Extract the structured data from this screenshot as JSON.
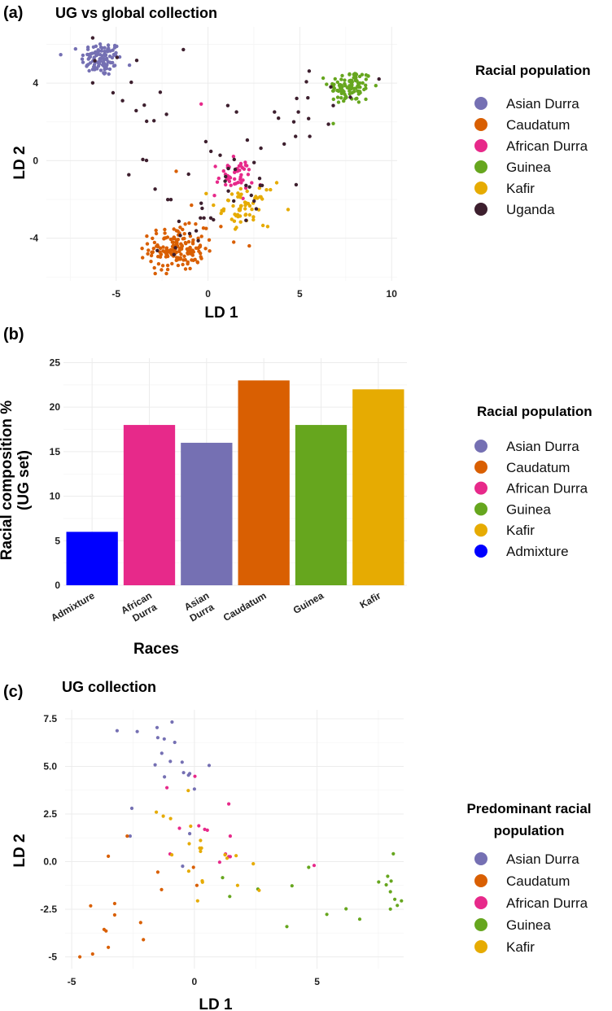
{
  "colors": {
    "Asian Durra": "#7570B3",
    "Caudatum": "#D95F02",
    "African Durra": "#E7298A",
    "Guinea": "#66A61E",
    "Kafir": "#E6AB02",
    "Uganda": "#3D1F2E",
    "Admixture": "#0000FF"
  },
  "chart_data": [
    {
      "panel": "(a)",
      "type": "scatter",
      "title": "UG vs global collection",
      "xlabel": "LD 1",
      "ylabel": "LD 2",
      "xlim": [
        -8.8,
        10.3
      ],
      "ylim": [
        -6.2,
        6.9
      ],
      "xticks": [
        -5,
        0,
        5,
        10
      ],
      "yticks": [
        -4,
        0,
        4
      ],
      "xtick_labels": [
        "-5",
        "0",
        "5",
        "10"
      ],
      "ytick_labels": [
        "-4",
        "0",
        "4"
      ],
      "grid": true,
      "legend": {
        "title": "Racial population",
        "placement": "right",
        "entries": [
          "Asian Durra",
          "Caudatum",
          "African Durra",
          "Guinea",
          "Kafir",
          "Uganda"
        ]
      },
      "clusters": [
        {
          "name": "Asian Durra",
          "center": [
            -5.8,
            5.25
          ],
          "sd": [
            0.55,
            0.45
          ],
          "n": 110
        },
        {
          "name": "Guinea",
          "center": [
            7.75,
            3.8
          ],
          "sd": [
            0.6,
            0.45
          ],
          "n": 100
        },
        {
          "name": "Caudatum",
          "center": [
            -1.7,
            -4.55
          ],
          "sd": [
            0.75,
            0.55
          ],
          "n": 160
        },
        {
          "name": "African Durra",
          "center": [
            1.45,
            -0.8
          ],
          "sd": [
            0.5,
            0.4
          ],
          "n": 45
        },
        {
          "name": "Kafir",
          "center": [
            2.0,
            -2.4
          ],
          "sd": [
            0.55,
            0.45
          ],
          "n": 55
        }
      ],
      "series": [
        {
          "name": "Uganda",
          "points": [
            [
              -6.28,
              6.33
            ],
            [
              -4.95,
              5.32
            ],
            [
              -6.16,
              5.15
            ],
            [
              -3.88,
              5.17
            ],
            [
              -6.28,
              4.01
            ],
            [
              -4.18,
              4.04
            ],
            [
              -1.34,
              5.73
            ],
            [
              -5.17,
              3.5
            ],
            [
              -4.65,
              3.09
            ],
            [
              -2.6,
              3.53
            ],
            [
              -3.47,
              2.86
            ],
            [
              -3.91,
              2.58
            ],
            [
              -3.34,
              2.03
            ],
            [
              -2.94,
              2.06
            ],
            [
              -2.26,
              2.39
            ],
            [
              1.08,
              2.84
            ],
            [
              1.55,
              2.51
            ],
            [
              -0.12,
              0.98
            ],
            [
              0.16,
              0.48
            ],
            [
              0.66,
              0.28
            ],
            [
              2.14,
              1.06
            ],
            [
              2.88,
              0.64
            ],
            [
              -3.55,
              0.06
            ],
            [
              -3.35,
              0.01
            ],
            [
              -4.31,
              -0.73
            ],
            [
              -1.06,
              -0.7
            ],
            [
              -2.88,
              -1.47
            ],
            [
              -2.19,
              -2.01
            ],
            [
              -2.02,
              -2.01
            ],
            [
              -0.37,
              -2.2
            ],
            [
              -0.32,
              -2.46
            ],
            [
              -0.41,
              -2.96
            ],
            [
              -0.22,
              -2.96
            ],
            [
              0.15,
              -2.96
            ],
            [
              0.3,
              -3.05
            ],
            [
              -1.58,
              -3.13
            ],
            [
              -1.51,
              -3.86
            ],
            [
              -0.64,
              -3.62
            ],
            [
              -1.0,
              -3.76
            ],
            [
              -0.53,
              -4.13
            ],
            [
              -1.77,
              -4.49
            ],
            [
              -2.76,
              -4.64
            ],
            [
              -1.85,
              -4.85
            ],
            [
              3.62,
              2.51
            ],
            [
              3.84,
              2.19
            ],
            [
              4.15,
              0.86
            ],
            [
              4.67,
              2.0
            ],
            [
              4.83,
              3.21
            ],
            [
              4.92,
              2.51
            ],
            [
              4.77,
              1.25
            ],
            [
              5.44,
              3.24
            ],
            [
              5.48,
              2.17
            ],
            [
              5.54,
              1.25
            ],
            [
              5.36,
              4.07
            ],
            [
              5.51,
              4.62
            ],
            [
              6.56,
              1.88
            ],
            [
              6.69,
              3.8
            ],
            [
              6.82,
              2.84
            ],
            [
              7.75,
              3.27
            ],
            [
              9.31,
              4.21
            ],
            [
              4.8,
              -1.24
            ],
            [
              2.51,
              -0.1
            ],
            [
              2.81,
              -0.92
            ],
            [
              2.85,
              -1.28
            ],
            [
              2.95,
              -1.28
            ],
            [
              0.96,
              -0.82
            ],
            [
              1.11,
              -0.41
            ],
            [
              1.43,
              0.06
            ],
            [
              1.48,
              -0.45
            ],
            [
              2.07,
              -1.28
            ],
            [
              2.26,
              -1.36
            ],
            [
              2.36,
              -1.79
            ],
            [
              2.51,
              -2.08
            ],
            [
              2.63,
              -2.49
            ],
            [
              2.07,
              -3.08
            ],
            [
              1.4,
              -2.08
            ],
            [
              1.11,
              -1.57
            ],
            [
              0.93,
              -1.06
            ]
          ]
        },
        {
          "name": "African Durra",
          "points": [
            [
              -0.37,
              2.92
            ],
            [
              0.4,
              -0.3
            ],
            [
              0.35,
              -1.8
            ]
          ]
        },
        {
          "name": "Caudatum",
          "points": [
            [
              -1.73,
              -0.55
            ],
            [
              -0.9,
              -2.3
            ],
            [
              -0.1,
              -3.5
            ],
            [
              0.7,
              -3.4
            ],
            [
              1.4,
              -4.2
            ],
            [
              2.25,
              -4.4
            ]
          ]
        },
        {
          "name": "Kafir",
          "points": [
            [
              4.36,
              -2.52
            ],
            [
              3.74,
              -1.14
            ],
            [
              3.25,
              -3.4
            ],
            [
              3.4,
              -1.5
            ],
            [
              -0.1,
              -1.7
            ],
            [
              0.3,
              -2.3
            ]
          ]
        }
      ]
    },
    {
      "panel": "(b)",
      "type": "bar",
      "title": "",
      "xlabel": "Races",
      "ylabel": "Racial composition %\n(UG set)",
      "ylabel_lines": [
        "Racial composition %",
        "(UG set)"
      ],
      "ylim": [
        0,
        25.5
      ],
      "yticks": [
        0,
        5,
        10,
        15,
        20,
        25
      ],
      "ytick_labels": [
        "0",
        "5",
        "10",
        "15",
        "20",
        "25"
      ],
      "categories": [
        "Admixture",
        "African Durra",
        "Asian Durra",
        "Caudatum",
        "Guinea",
        "Kafir"
      ],
      "category_label_lines": [
        [
          "Admixture"
        ],
        [
          "African",
          "Durra"
        ],
        [
          "Asian",
          "Durra"
        ],
        [
          "Caudatum"
        ],
        [
          "Guinea"
        ],
        [
          "Kafir"
        ]
      ],
      "values": [
        6,
        18,
        16,
        23,
        18,
        22
      ],
      "grid": true,
      "legend": {
        "title": "Racial population",
        "placement": "right",
        "entries": [
          "Asian Durra",
          "Caudatum",
          "African Durra",
          "Guinea",
          "Kafir",
          "Admixture"
        ]
      }
    },
    {
      "panel": "(c)",
      "type": "scatter",
      "title": "UG collection",
      "xlabel": "LD 1",
      "ylabel": "LD 2",
      "xlim": [
        -5.27,
        8.53
      ],
      "ylim": [
        -5.62,
        7.97
      ],
      "xticks": [
        -5,
        0,
        5
      ],
      "yticks": [
        -5,
        -2.5,
        0,
        2.5,
        5,
        7.5
      ],
      "xtick_labels": [
        "-5",
        "0",
        "5"
      ],
      "ytick_labels": [
        "-5",
        "-2.5",
        "0.0",
        "2.5",
        "5.0",
        "7.5"
      ],
      "grid": true,
      "legend": {
        "title_lines": [
          "Predominant racial",
          "population"
        ],
        "placement": "right",
        "entries": [
          "Asian Durra",
          "Caudatum",
          "African Durra",
          "Guinea",
          "Kafir"
        ]
      },
      "series": [
        {
          "name": "Asian Durra",
          "points": [
            [
              -3.15,
              6.87
            ],
            [
              -2.33,
              6.83
            ],
            [
              -1.52,
              7.04
            ],
            [
              -0.91,
              7.33
            ],
            [
              -1.49,
              6.51
            ],
            [
              -1.23,
              6.44
            ],
            [
              -0.8,
              6.26
            ],
            [
              -1.33,
              5.69
            ],
            [
              -1.6,
              5.08
            ],
            [
              -0.98,
              5.26
            ],
            [
              -0.5,
              5.22
            ],
            [
              0.6,
              5.05
            ],
            [
              -0.44,
              4.67
            ],
            [
              -0.24,
              4.54
            ],
            [
              -0.19,
              4.62
            ],
            [
              -1.22,
              4.45
            ],
            [
              0,
              3.81
            ],
            [
              -2.55,
              2.8
            ],
            [
              -2.62,
              1.34
            ],
            [
              -0.19,
              1.47
            ],
            [
              -0.48,
              -0.24
            ]
          ]
        },
        {
          "name": "Caudatum",
          "points": [
            [
              -2.74,
              1.34
            ],
            [
              -3.51,
              0.28
            ],
            [
              -1.49,
              -0.55
            ],
            [
              -0.04,
              -0.3
            ],
            [
              -1.34,
              -1.47
            ],
            [
              0.1,
              -1.25
            ],
            [
              -4.23,
              -2.32
            ],
            [
              -3.25,
              -2.2
            ],
            [
              -3.25,
              -2.8
            ],
            [
              -2.19,
              -3.2
            ],
            [
              -3.68,
              -3.56
            ],
            [
              -3.6,
              -3.64
            ],
            [
              -2.08,
              -4.1
            ],
            [
              -3.51,
              -4.5
            ],
            [
              -4.15,
              -4.85
            ],
            [
              -4.67,
              -5.0
            ]
          ]
        },
        {
          "name": "African Durra",
          "points": [
            [
              0.02,
              4.48
            ],
            [
              -1.12,
              3.88
            ],
            [
              1.4,
              3.03
            ],
            [
              -0.61,
              1.75
            ],
            [
              0.18,
              1.88
            ],
            [
              0.42,
              1.69
            ],
            [
              0.53,
              1.65
            ],
            [
              1.46,
              1.34
            ],
            [
              -0.99,
              0.4
            ],
            [
              1.27,
              0.4
            ],
            [
              1.4,
              0.26
            ],
            [
              1.46,
              0.26
            ],
            [
              1.03,
              -0.03
            ],
            [
              4.88,
              -0.2
            ]
          ]
        },
        {
          "name": "Guinea",
          "points": [
            [
              8.11,
              0.41
            ],
            [
              1.15,
              -0.84
            ],
            [
              1.44,
              -1.83
            ],
            [
              2.59,
              -1.44
            ],
            [
              3.98,
              -1.27
            ],
            [
              4.66,
              -0.3
            ],
            [
              7.51,
              -1.07
            ],
            [
              7.88,
              -0.77
            ],
            [
              8.02,
              -1.02
            ],
            [
              7.82,
              -1.22
            ],
            [
              7.99,
              -1.58
            ],
            [
              8.17,
              -1.98
            ],
            [
              8.44,
              -2.06
            ],
            [
              8.27,
              -2.3
            ],
            [
              7.99,
              -2.49
            ],
            [
              6.18,
              -2.48
            ],
            [
              5.4,
              -2.77
            ],
            [
              6.74,
              -3.02
            ],
            [
              3.77,
              -3.41
            ]
          ]
        },
        {
          "name": "Kafir",
          "points": [
            [
              -0.25,
              3.73
            ],
            [
              -1.55,
              2.6
            ],
            [
              -1.27,
              2.39
            ],
            [
              -0.97,
              2.26
            ],
            [
              -0.15,
              1.86
            ],
            [
              0.25,
              1.11
            ],
            [
              -0.21,
              0.94
            ],
            [
              0.22,
              0.71
            ],
            [
              0.29,
              0.71
            ],
            [
              0.25,
              0.54
            ],
            [
              -0.92,
              0.36
            ],
            [
              1.25,
              0.36
            ],
            [
              1.33,
              0.18
            ],
            [
              1.7,
              0.31
            ],
            [
              2.4,
              -0.11
            ],
            [
              -0.23,
              -0.5
            ],
            [
              0.32,
              -1.01
            ],
            [
              0.33,
              -1.08
            ],
            [
              1.76,
              -1.25
            ],
            [
              2.64,
              -1.51
            ],
            [
              0.13,
              -2.06
            ]
          ]
        }
      ]
    }
  ]
}
